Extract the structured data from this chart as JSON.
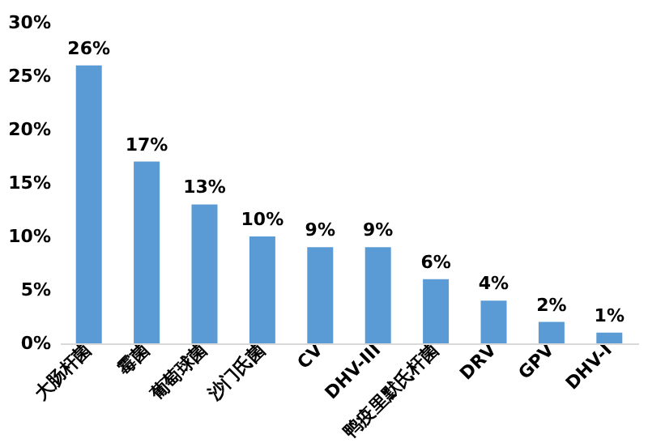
{
  "chart_data": {
    "type": "bar",
    "categories": [
      "大肠杆菌",
      "霉菌",
      "葡萄球菌",
      "沙门氏菌",
      "CV",
      "DHV-III",
      "鸭疫里默氏杆菌",
      "DRV",
      "GPV",
      "DHV-I"
    ],
    "values": [
      26,
      17,
      13,
      10,
      9,
      9,
      6,
      4,
      2,
      1
    ],
    "value_labels": [
      "26%",
      "17%",
      "13%",
      "10%",
      "9%",
      "9%",
      "6%",
      "4%",
      "2%",
      "1%"
    ],
    "color": "#5b9bd5",
    "ylim": [
      0,
      30
    ],
    "yticks": [
      {
        "value": 0,
        "label": "0%"
      },
      {
        "value": 5,
        "label": "5%"
      },
      {
        "value": 10,
        "label": "10%"
      },
      {
        "value": 15,
        "label": "15%"
      },
      {
        "value": 20,
        "label": "20%"
      },
      {
        "value": 25,
        "label": "25%"
      },
      {
        "value": 30,
        "label": "30%"
      }
    ],
    "grid": false
  }
}
